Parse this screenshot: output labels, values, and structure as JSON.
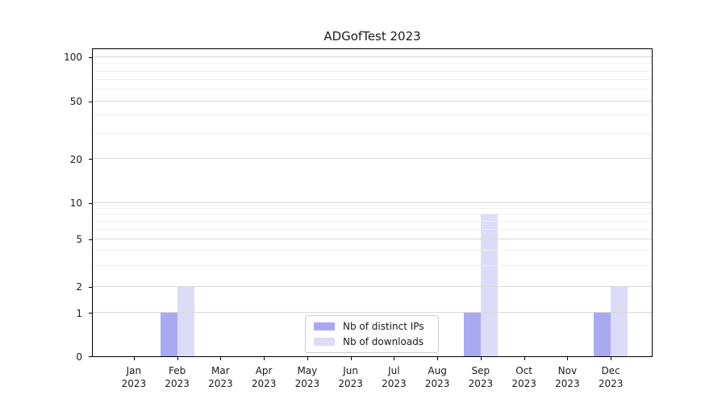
{
  "chart_data": {
    "type": "bar",
    "title": "ADGofTest 2023",
    "categories": [
      "Jan 2023",
      "Feb 2023",
      "Mar 2023",
      "Apr 2023",
      "May 2023",
      "Jun 2023",
      "Jul 2023",
      "Aug 2023",
      "Sep 2023",
      "Oct 2023",
      "Nov 2023",
      "Dec 2023"
    ],
    "series": [
      {
        "name": "Nb of distinct IPs",
        "color": "#a9a9f2",
        "values": [
          0,
          1,
          0,
          0,
          0,
          0,
          0,
          0,
          1,
          0,
          0,
          1
        ]
      },
      {
        "name": "Nb of downloads",
        "color": "#dcdcf8",
        "values": [
          0,
          2,
          0,
          0,
          0,
          0,
          0,
          0,
          8,
          0,
          0,
          2
        ]
      }
    ],
    "yticks": [
      0,
      1,
      2,
      5,
      10,
      20,
      50,
      100
    ],
    "minor_yticks": [
      3,
      4,
      6,
      7,
      8,
      9,
      30,
      40,
      60,
      70,
      80,
      90
    ],
    "ylim": [
      0,
      113
    ],
    "xlabel": "",
    "ylabel": "",
    "scale": "log-like above 1, linear 0-1",
    "grid": "horizontal major+minor",
    "legend_position": "lower center",
    "colors": {
      "grid_major": "#d8d8d8",
      "grid_minor": "#efefef",
      "spine": "#000000",
      "text": "#1a1a1a",
      "background": "#ffffff"
    }
  }
}
